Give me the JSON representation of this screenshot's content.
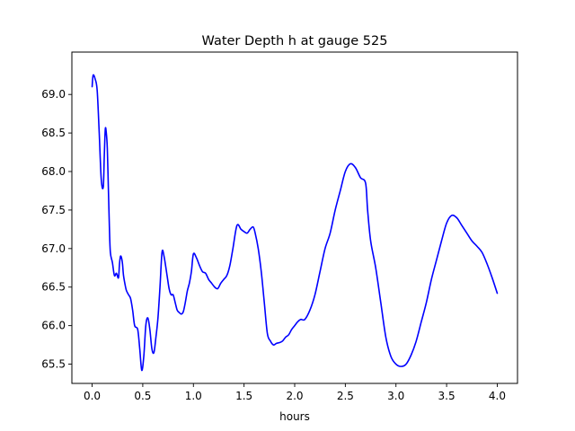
{
  "chart_data": {
    "type": "line",
    "title": "Water Depth h at gauge 525",
    "xlabel": "hours",
    "ylabel": "",
    "xlim": [
      -0.2,
      4.2
    ],
    "ylim": [
      65.25,
      69.55
    ],
    "xticks": [
      0.0,
      0.5,
      1.0,
      1.5,
      2.0,
      2.5,
      3.0,
      3.5,
      4.0
    ],
    "xtick_labels": [
      "0.0",
      "0.5",
      "1.0",
      "1.5",
      "2.0",
      "2.5",
      "3.0",
      "3.5",
      "4.0"
    ],
    "yticks": [
      65.5,
      66.0,
      66.5,
      67.0,
      67.5,
      68.0,
      68.5,
      69.0
    ],
    "ytick_labels": [
      "65.5",
      "66.0",
      "66.5",
      "67.0",
      "67.5",
      "68.0",
      "68.5",
      "69.0"
    ],
    "grid": false,
    "series": [
      {
        "name": "",
        "color": "#0000ff",
        "x": [
          0.0,
          0.01,
          0.03,
          0.05,
          0.07,
          0.09,
          0.11,
          0.12,
          0.13,
          0.14,
          0.15,
          0.16,
          0.17,
          0.18,
          0.2,
          0.22,
          0.24,
          0.26,
          0.27,
          0.28,
          0.29,
          0.3,
          0.31,
          0.33,
          0.34,
          0.36,
          0.38,
          0.4,
          0.42,
          0.45,
          0.47,
          0.49,
          0.51,
          0.53,
          0.55,
          0.57,
          0.59,
          0.61,
          0.63,
          0.65,
          0.67,
          0.69,
          0.71,
          0.74,
          0.76,
          0.78,
          0.8,
          0.82,
          0.84,
          0.86,
          0.88,
          0.9,
          0.92,
          0.94,
          0.96,
          0.98,
          1.0,
          1.03,
          1.06,
          1.09,
          1.12,
          1.15,
          1.18,
          1.21,
          1.24,
          1.27,
          1.3,
          1.33,
          1.36,
          1.39,
          1.43,
          1.47,
          1.5,
          1.53,
          1.56,
          1.59,
          1.61,
          1.64,
          1.67,
          1.7,
          1.73,
          1.76,
          1.79,
          1.82,
          1.85,
          1.88,
          1.91,
          1.94,
          1.97,
          2.0,
          2.03,
          2.06,
          2.1,
          2.15,
          2.2,
          2.25,
          2.3,
          2.35,
          2.4,
          2.45,
          2.5,
          2.55,
          2.6,
          2.65,
          2.7,
          2.72,
          2.75,
          2.8,
          2.85,
          2.9,
          2.95,
          3.0,
          3.05,
          3.1,
          3.15,
          3.2,
          3.25,
          3.3,
          3.35,
          3.4,
          3.45,
          3.5,
          3.55,
          3.6,
          3.65,
          3.7,
          3.75,
          3.8,
          3.85,
          3.9,
          3.95,
          4.0
        ],
        "y": [
          69.1,
          69.25,
          69.2,
          69.05,
          68.5,
          67.9,
          67.8,
          68.2,
          68.55,
          68.5,
          68.3,
          67.8,
          67.3,
          66.95,
          66.82,
          66.65,
          66.68,
          66.62,
          66.8,
          66.9,
          66.88,
          66.8,
          66.65,
          66.5,
          66.45,
          66.4,
          66.35,
          66.2,
          66.0,
          65.95,
          65.7,
          65.42,
          65.6,
          66.0,
          66.1,
          65.95,
          65.7,
          65.65,
          65.85,
          66.1,
          66.5,
          66.95,
          66.9,
          66.65,
          66.48,
          66.4,
          66.4,
          66.3,
          66.2,
          66.17,
          66.15,
          66.18,
          66.3,
          66.45,
          66.55,
          66.7,
          66.93,
          66.88,
          66.78,
          66.7,
          66.68,
          66.6,
          66.55,
          66.5,
          66.48,
          66.55,
          66.6,
          66.65,
          66.78,
          67.0,
          67.3,
          67.25,
          67.22,
          67.2,
          67.25,
          67.28,
          67.2,
          67.0,
          66.7,
          66.3,
          65.9,
          65.8,
          65.75,
          65.77,
          65.78,
          65.8,
          65.85,
          65.88,
          65.95,
          66.0,
          66.05,
          66.08,
          66.08,
          66.2,
          66.4,
          66.7,
          67.0,
          67.2,
          67.5,
          67.75,
          68.0,
          68.1,
          68.05,
          67.92,
          67.85,
          67.5,
          67.1,
          66.75,
          66.3,
          65.85,
          65.6,
          65.5,
          65.47,
          65.5,
          65.62,
          65.8,
          66.05,
          66.3,
          66.6,
          66.85,
          67.1,
          67.33,
          67.43,
          67.4,
          67.3,
          67.2,
          67.1,
          67.03,
          66.95,
          66.8,
          66.62,
          66.42
        ]
      }
    ]
  }
}
